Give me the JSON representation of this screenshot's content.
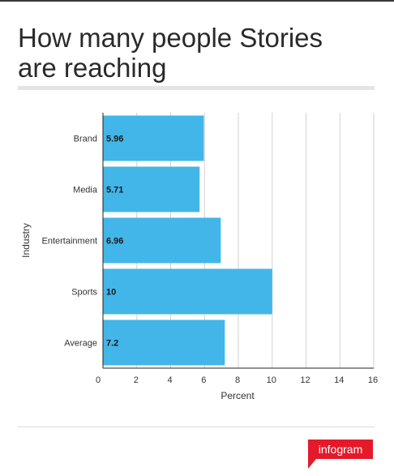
{
  "page": {
    "title_line1": "How many people Stories",
    "title_line2": "are reaching",
    "logo_text": "infogram"
  },
  "chart_data": {
    "type": "bar",
    "orientation": "horizontal",
    "categories": [
      "Brand",
      "Media",
      "Entertainment",
      "Sports",
      "Average"
    ],
    "values": [
      5.96,
      5.71,
      6.96,
      10,
      7.2
    ],
    "value_labels": [
      "5.96",
      "5.71",
      "6.96",
      "10",
      "7.2"
    ],
    "xlabel": "Percent",
    "ylabel": "Industry",
    "xlim": [
      0,
      16
    ],
    "xticks": [
      0,
      2,
      4,
      6,
      8,
      10,
      12,
      14,
      16
    ],
    "grid": true,
    "bar_color": "#42b6e8"
  }
}
